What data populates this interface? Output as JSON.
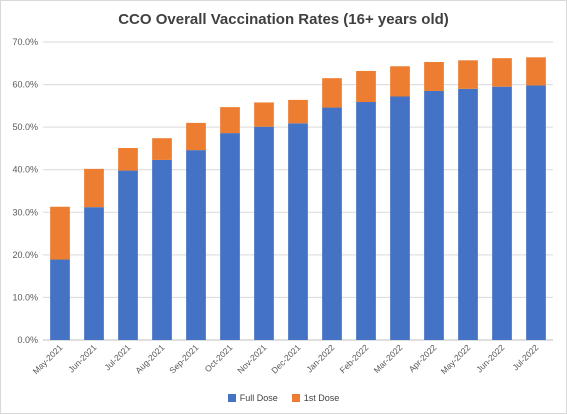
{
  "chart_data": {
    "type": "bar",
    "stacked": true,
    "title": "CCO Overall Vaccination Rates (16+ years old)",
    "xlabel": "",
    "ylabel": "",
    "categories": [
      "May-2021",
      "Jun-2021",
      "Jul-2021",
      "Aug-2021",
      "Sep-2021",
      "Oct-2021",
      "Nov-2021",
      "Dec-2021",
      "Jan-2022",
      "Feb-2022",
      "Mar-2022",
      "Apr-2022",
      "May-2022",
      "Jun-2022",
      "Jul-2022"
    ],
    "series": [
      {
        "name": "Full Dose",
        "color": "#4472c4",
        "values": [
          18.9,
          31.2,
          39.8,
          42.3,
          44.6,
          48.6,
          50.1,
          50.9,
          54.6,
          55.9,
          57.2,
          58.5,
          59.0,
          59.5,
          59.8
        ]
      },
      {
        "name": "1st Dose",
        "color": "#ed7d31",
        "values": [
          12.4,
          9.0,
          5.3,
          5.1,
          6.4,
          6.1,
          5.7,
          5.5,
          6.9,
          7.3,
          7.1,
          6.8,
          6.7,
          6.7,
          6.6
        ]
      }
    ],
    "ylim": [
      0,
      70
    ],
    "yticks": [
      "0.0%",
      "10.0%",
      "20.0%",
      "30.0%",
      "40.0%",
      "50.0%",
      "60.0%",
      "70.0%"
    ],
    "grid": true,
    "legend_position": "bottom"
  }
}
